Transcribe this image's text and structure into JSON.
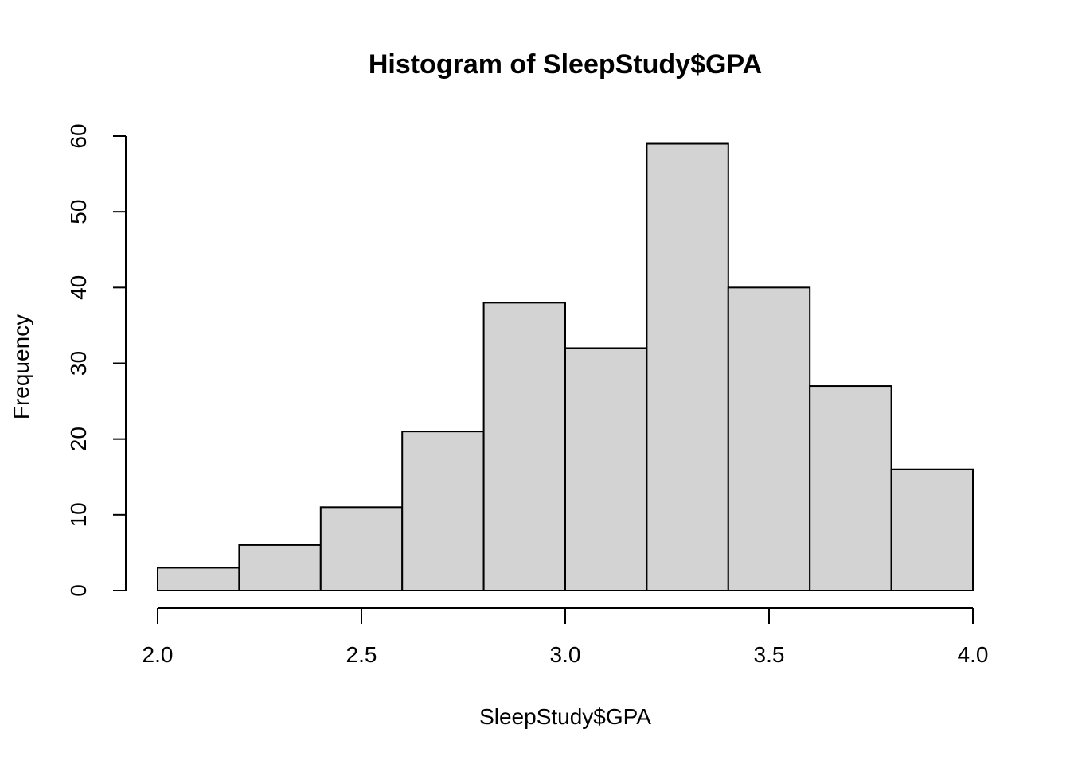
{
  "chart_data": {
    "type": "bar",
    "title": "Histogram of SleepStudy$GPA",
    "xlabel": "SleepStudy$GPA",
    "ylabel": "Frequency",
    "bins": [
      {
        "start": 2.0,
        "end": 2.2,
        "count": 3
      },
      {
        "start": 2.2,
        "end": 2.4,
        "count": 6
      },
      {
        "start": 2.4,
        "end": 2.6,
        "count": 11
      },
      {
        "start": 2.6,
        "end": 2.8,
        "count": 21
      },
      {
        "start": 2.8,
        "end": 3.0,
        "count": 38
      },
      {
        "start": 3.0,
        "end": 3.2,
        "count": 32
      },
      {
        "start": 3.2,
        "end": 3.4,
        "count": 59
      },
      {
        "start": 3.4,
        "end": 3.6,
        "count": 40
      },
      {
        "start": 3.6,
        "end": 3.8,
        "count": 27
      },
      {
        "start": 3.8,
        "end": 4.0,
        "count": 16
      }
    ],
    "xlim": [
      2.0,
      4.0
    ],
    "ylim": [
      0,
      60
    ],
    "x_ticks": [
      "2.0",
      "2.5",
      "3.0",
      "3.5",
      "4.0"
    ],
    "y_ticks": [
      "0",
      "10",
      "20",
      "30",
      "40",
      "50",
      "60"
    ],
    "bar_fill": "#d3d3d3",
    "bar_stroke": "#000000",
    "grid": false,
    "legend": "none"
  }
}
